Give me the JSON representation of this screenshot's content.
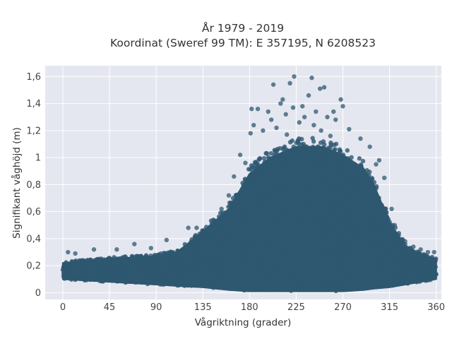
{
  "chart_data": {
    "type": "scatter",
    "title_line1": "År 1979 - 2019",
    "title_line2": "Koordinat (Sweref 99 TM): E 357195, N 6208523",
    "xlabel": "Vågriktning (grader)",
    "ylabel": "Signifikant våghöjd (m)",
    "xlim": [
      -17,
      365
    ],
    "ylim": [
      -0.05,
      1.68
    ],
    "xticks": [
      0,
      45,
      90,
      135,
      180,
      225,
      270,
      315,
      360
    ],
    "xtick_labels": [
      "0",
      "45",
      "90",
      "135",
      "180",
      "225",
      "270",
      "315",
      "360"
    ],
    "yticks": [
      0,
      0.2,
      0.4,
      0.6,
      0.8,
      1,
      1.2,
      1.4,
      1.6
    ],
    "ytick_labels": [
      "0",
      "0,2",
      "0,4",
      "0,6",
      "0,8",
      "1",
      "1,2",
      "1,4",
      "1,6"
    ],
    "grid": true,
    "colors": {
      "marker": "#2e5870",
      "plot_bg": "#e5e7f0",
      "grid": "#ffffff"
    },
    "envelope": {
      "direction": [
        0,
        45,
        90,
        110,
        135,
        160,
        180,
        200,
        225,
        250,
        270,
        290,
        300,
        315,
        330,
        345,
        360
      ],
      "max_height": [
        0.22,
        0.25,
        0.27,
        0.3,
        0.45,
        0.62,
        0.88,
        1.0,
        1.08,
        1.08,
        1.02,
        0.92,
        0.8,
        0.52,
        0.35,
        0.28,
        0.25
      ],
      "min_height": [
        0.1,
        0.08,
        0.06,
        0.05,
        0.04,
        0.02,
        0.01,
        0.01,
        0.01,
        0.01,
        0.01,
        0.02,
        0.03,
        0.04,
        0.06,
        0.08,
        0.1
      ]
    },
    "outliers": [
      [
        223,
        1.6
      ],
      [
        240,
        1.59
      ],
      [
        219,
        1.55
      ],
      [
        203,
        1.54
      ],
      [
        252,
        1.52
      ],
      [
        248,
        1.51
      ],
      [
        237,
        1.46
      ],
      [
        212,
        1.43
      ],
      [
        268,
        1.43
      ],
      [
        210,
        1.4
      ],
      [
        231,
        1.38
      ],
      [
        270,
        1.38
      ],
      [
        222,
        1.37
      ],
      [
        182,
        1.36
      ],
      [
        188,
        1.36
      ],
      [
        198,
        1.34
      ],
      [
        244,
        1.34
      ],
      [
        261,
        1.34
      ],
      [
        215,
        1.32
      ],
      [
        233,
        1.3
      ],
      [
        255,
        1.3
      ],
      [
        201,
        1.28
      ],
      [
        263,
        1.28
      ],
      [
        228,
        1.26
      ],
      [
        184,
        1.24
      ],
      [
        242,
        1.24
      ],
      [
        206,
        1.22
      ],
      [
        276,
        1.21
      ],
      [
        193,
        1.2
      ],
      [
        249,
        1.2
      ],
      [
        181,
        1.18
      ],
      [
        216,
        1.17
      ],
      [
        258,
        1.16
      ],
      [
        287,
        1.14
      ],
      [
        296,
        1.08
      ],
      [
        305,
        0.98
      ],
      [
        302,
        0.95
      ],
      [
        171,
        1.02
      ],
      [
        176,
        0.96
      ],
      [
        165,
        0.86
      ],
      [
        160,
        0.72
      ],
      [
        153,
        0.62
      ],
      [
        310,
        0.85
      ],
      [
        317,
        0.62
      ],
      [
        320,
        0.5
      ],
      [
        324,
        0.44
      ],
      [
        330,
        0.38
      ],
      [
        338,
        0.34
      ],
      [
        345,
        0.32
      ],
      [
        352,
        0.3
      ],
      [
        358,
        0.3
      ],
      [
        100,
        0.39
      ],
      [
        52,
        0.32
      ],
      [
        30,
        0.32
      ],
      [
        69,
        0.36
      ],
      [
        5,
        0.3
      ],
      [
        12,
        0.29
      ],
      [
        85,
        0.33
      ],
      [
        121,
        0.48
      ],
      [
        129,
        0.48
      ]
    ]
  }
}
